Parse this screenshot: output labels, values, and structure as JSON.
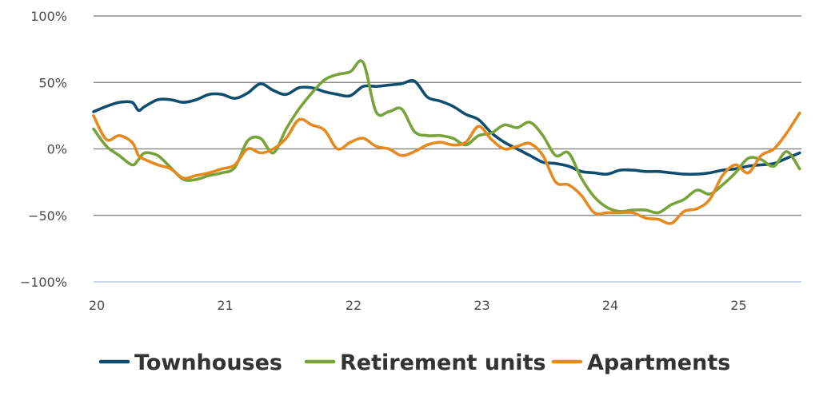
{
  "chart_data": {
    "type": "line",
    "title": "",
    "xlabel": "",
    "ylabel": "",
    "xlim": [
      20,
      25.5
    ],
    "ylim": [
      -100,
      100
    ],
    "x_ticks": [
      20,
      21,
      22,
      23,
      24,
      25
    ],
    "x_tick_labels": [
      "20",
      "21",
      "22",
      "23",
      "24",
      "25"
    ],
    "y_ticks": [
      100,
      50,
      0,
      -50,
      -100
    ],
    "y_tick_labels": [
      "100%",
      "50%",
      "0%",
      "−50%",
      "−100%"
    ],
    "grid": true,
    "legend_position": "bottom",
    "series": [
      {
        "name": "Townhouses",
        "color": "#0e4d6e",
        "x": [
          20.0,
          20.1,
          20.2,
          20.3,
          20.35,
          20.4,
          20.5,
          20.6,
          20.7,
          20.8,
          20.9,
          21.0,
          21.1,
          21.2,
          21.3,
          21.4,
          21.5,
          21.6,
          21.7,
          21.8,
          21.9,
          22.0,
          22.1,
          22.2,
          22.3,
          22.4,
          22.5,
          22.6,
          22.7,
          22.8,
          22.9,
          23.0,
          23.1,
          23.2,
          23.3,
          23.4,
          23.5,
          23.6,
          23.7,
          23.8,
          23.9,
          24.0,
          24.1,
          24.2,
          24.3,
          24.4,
          24.5,
          24.6,
          24.7,
          24.8,
          24.9,
          25.0,
          25.1,
          25.2,
          25.3,
          25.4,
          25.5
        ],
        "values": [
          28,
          32,
          35,
          35,
          29,
          32,
          37,
          37,
          35,
          37,
          41,
          41,
          38,
          42,
          49,
          44,
          41,
          46,
          46,
          43,
          41,
          40,
          47,
          47,
          48,
          49,
          51,
          39,
          36,
          32,
          26,
          22,
          12,
          5,
          0,
          -5,
          -10,
          -11,
          -13,
          -17,
          -18,
          -19,
          -16,
          -16,
          -17,
          -17,
          -18,
          -19,
          -19,
          -18,
          -16,
          -15,
          -13,
          -12,
          -11,
          -7,
          -3
        ]
      },
      {
        "name": "Retirement units",
        "color": "#78a33a",
        "x": [
          20.0,
          20.1,
          20.2,
          20.3,
          20.35,
          20.4,
          20.5,
          20.6,
          20.7,
          20.8,
          20.9,
          21.0,
          21.1,
          21.2,
          21.3,
          21.4,
          21.5,
          21.6,
          21.7,
          21.8,
          21.9,
          22.0,
          22.1,
          22.2,
          22.3,
          22.4,
          22.5,
          22.6,
          22.7,
          22.8,
          22.9,
          23.0,
          23.1,
          23.2,
          23.3,
          23.4,
          23.5,
          23.6,
          23.7,
          23.8,
          23.9,
          24.0,
          24.1,
          24.2,
          24.3,
          24.4,
          24.5,
          24.6,
          24.7,
          24.8,
          24.9,
          25.0,
          25.1,
          25.2,
          25.3,
          25.4,
          25.5
        ],
        "values": [
          15,
          2,
          -5,
          -12,
          -8,
          -3,
          -5,
          -14,
          -23,
          -23,
          -20,
          -18,
          -14,
          6,
          8,
          -3,
          15,
          30,
          42,
          52,
          56,
          58,
          65,
          28,
          28,
          30,
          13,
          10,
          10,
          8,
          3,
          10,
          12,
          18,
          16,
          20,
          10,
          -5,
          -3,
          -22,
          -36,
          -44,
          -47,
          -46,
          -46,
          -48,
          -42,
          -38,
          -31,
          -34,
          -27,
          -18,
          -7,
          -8,
          -13,
          -2,
          -15
        ]
      },
      {
        "name": "Apartments",
        "color": "#e48a1f",
        "x": [
          20.0,
          20.1,
          20.2,
          20.3,
          20.35,
          20.4,
          20.5,
          20.6,
          20.7,
          20.8,
          20.9,
          21.0,
          21.1,
          21.2,
          21.3,
          21.4,
          21.5,
          21.6,
          21.7,
          21.8,
          21.9,
          22.0,
          22.1,
          22.2,
          22.3,
          22.4,
          22.5,
          22.6,
          22.7,
          22.8,
          22.9,
          23.0,
          23.1,
          23.2,
          23.3,
          23.4,
          23.5,
          23.6,
          23.7,
          23.8,
          23.9,
          24.0,
          24.1,
          24.2,
          24.3,
          24.4,
          24.5,
          24.6,
          24.7,
          24.8,
          24.9,
          25.0,
          25.1,
          25.2,
          25.3,
          25.4,
          25.5
        ],
        "values": [
          25,
          7,
          10,
          5,
          -5,
          -8,
          -12,
          -15,
          -22,
          -20,
          -18,
          -15,
          -12,
          0,
          -3,
          0,
          8,
          22,
          18,
          14,
          0,
          5,
          8,
          2,
          0,
          -5,
          -2,
          3,
          5,
          3,
          5,
          17,
          7,
          0,
          2,
          4,
          -5,
          -25,
          -27,
          -35,
          -48,
          -48,
          -48,
          -48,
          -52,
          -53,
          -56,
          -47,
          -45,
          -38,
          -20,
          -12,
          -18,
          -5,
          0,
          12,
          27
        ]
      }
    ]
  }
}
